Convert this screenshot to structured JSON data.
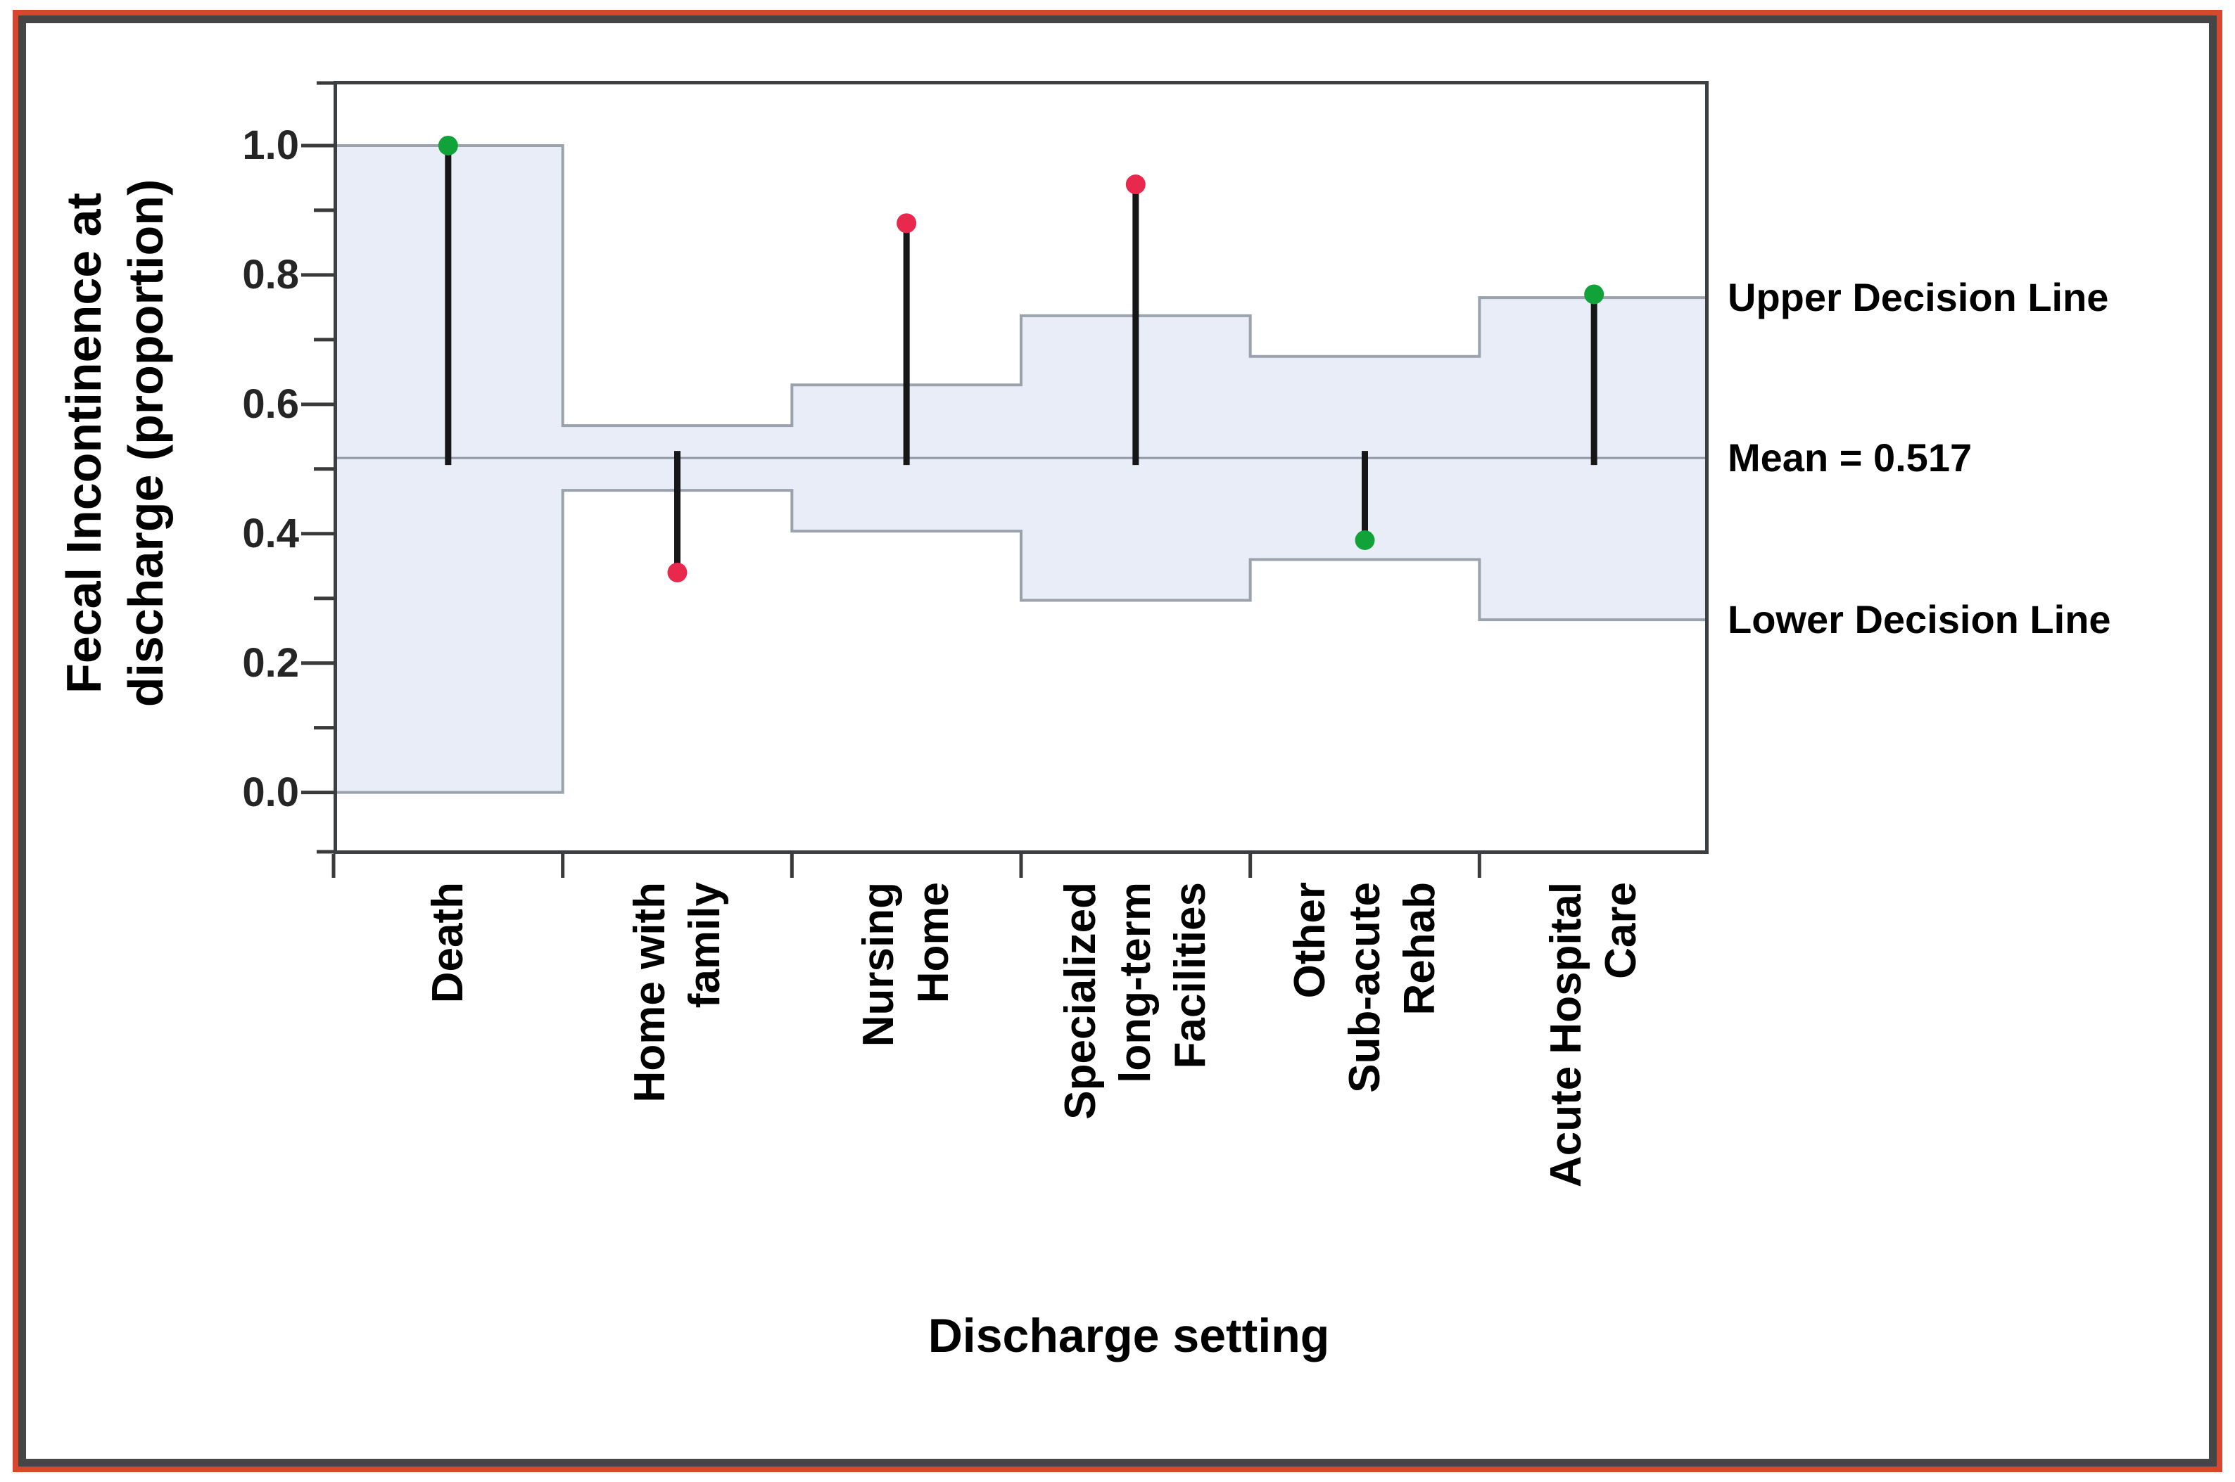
{
  "figure": {
    "outer_border_color": "#d6472f",
    "inner_border_color": "#454545",
    "background": "#ffffff"
  },
  "chart_data": {
    "type": "scatter",
    "chart_kind": "analysis-of-means decision chart (needles from mean with stepped decision limits)",
    "title": "",
    "xlabel": "Discharge setting",
    "ylabel": "Fecal Incontinence at\ndischarge (proportion)",
    "categories": [
      "Death",
      "Home with\nfamily",
      "Nursing\nHome",
      "Specialized\nlong-term\nFacilities",
      "Other\nSub-acute\nRehab",
      "Acute Hospital\nCare"
    ],
    "values": [
      1.0,
      0.34,
      0.88,
      0.94,
      0.39,
      0.77
    ],
    "decision_limits": [
      {
        "lower": 0.0,
        "upper": 1.0
      },
      {
        "lower": 0.467,
        "upper": 0.567
      },
      {
        "lower": 0.404,
        "upper": 0.63
      },
      {
        "lower": 0.297,
        "upper": 0.737
      },
      {
        "lower": 0.36,
        "upper": 0.674
      },
      {
        "lower": 0.267,
        "upper": 0.765
      }
    ],
    "mean": 0.517,
    "ylim": [
      -0.095,
      1.1
    ],
    "yticks": [
      0.0,
      0.2,
      0.4,
      0.6,
      0.8,
      1.0
    ],
    "yticks_minor": [
      0.1,
      0.3,
      0.5,
      0.7,
      0.9
    ],
    "grid": false,
    "legend_position": "none",
    "annotations": {
      "upper": "Upper Decision Line",
      "mean": "Mean = 0.517",
      "lower": "Lower Decision Line"
    },
    "colors": {
      "band_fill": "#e9edf7",
      "band_edge": "#9aa2ad",
      "mean_line": "#8e98a8",
      "needle": "#161616",
      "frame": "#3c3f42",
      "tick": "#3a3a3a",
      "point_within": "#11a339",
      "point_beyond": "#e8294d"
    }
  }
}
